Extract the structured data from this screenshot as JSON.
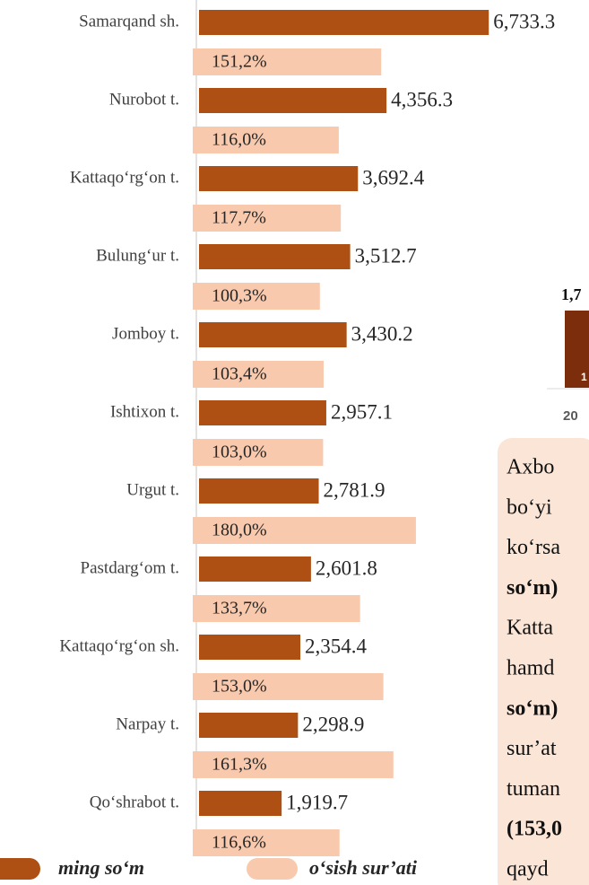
{
  "chart_data": {
    "type": "hbar",
    "categories": [
      "Samarqand sh.",
      "Nurobot t.",
      "Kattaqo‘rg‘on t.",
      "Bulung‘ur t.",
      "Jomboy t.",
      "Ishtixon t.",
      "Urgut t.",
      "Pastdarg‘om t.",
      "Kattaqo‘rg‘on sh.",
      "Narpay t.",
      "Qo‘shrabot t."
    ],
    "series": [
      {
        "name": "ming so‘m",
        "color": "#ae4f13",
        "values": [
          6733.3,
          4356.3,
          3692.4,
          3512.7,
          3430.2,
          2957.1,
          2781.9,
          2601.8,
          2354.4,
          2298.9,
          1919.7
        ],
        "value_labels": [
          "6,733.3",
          "4,356.3",
          "3,692.4",
          "3,512.7",
          "3,430.2",
          "2,957.1",
          "2,781.9",
          "2,601.8",
          "2,354.4",
          "2,298.9",
          "1,919.7"
        ]
      },
      {
        "name": "o‘sish sur’ati",
        "color": "#f8c9ad",
        "axis": "x2",
        "values": [
          151.2,
          116.0,
          117.7,
          100.3,
          103.4,
          103.0,
          180.0,
          133.7,
          153.0,
          161.3,
          116.6
        ],
        "value_labels": [
          "151,2%",
          "116,0%",
          "117,7%",
          "100,3%",
          "103,4%",
          "103,0%",
          "180,0%",
          "133,7%",
          "153,0%",
          "161,3%",
          "116,6%"
        ]
      }
    ],
    "xlim": [
      0,
      7000
    ],
    "x2lim": [
      0,
      250
    ],
    "legend": "bottom"
  },
  "side_panel": {
    "chart_fragment": {
      "top_label": "1,7",
      "bar_label": "1",
      "x_label": "20"
    },
    "text_lines": [
      {
        "text": " Axbo",
        "bold": false
      },
      {
        "text": "bo‘yi",
        "bold": false
      },
      {
        "text": "ko‘rsa",
        "bold": false
      },
      {
        "text": "so‘m)",
        "bold": true
      },
      {
        "text": "Katta",
        "bold": false
      },
      {
        "text": "hamd",
        "bold": false
      },
      {
        "text": "so‘m)",
        "bold": true
      },
      {
        "text": "sur’at",
        "bold": false
      },
      {
        "text": "tuman",
        "bold": false
      },
      {
        "text": "(153,0",
        "bold": true
      },
      {
        "text": "qayd",
        "bold": false
      }
    ]
  }
}
